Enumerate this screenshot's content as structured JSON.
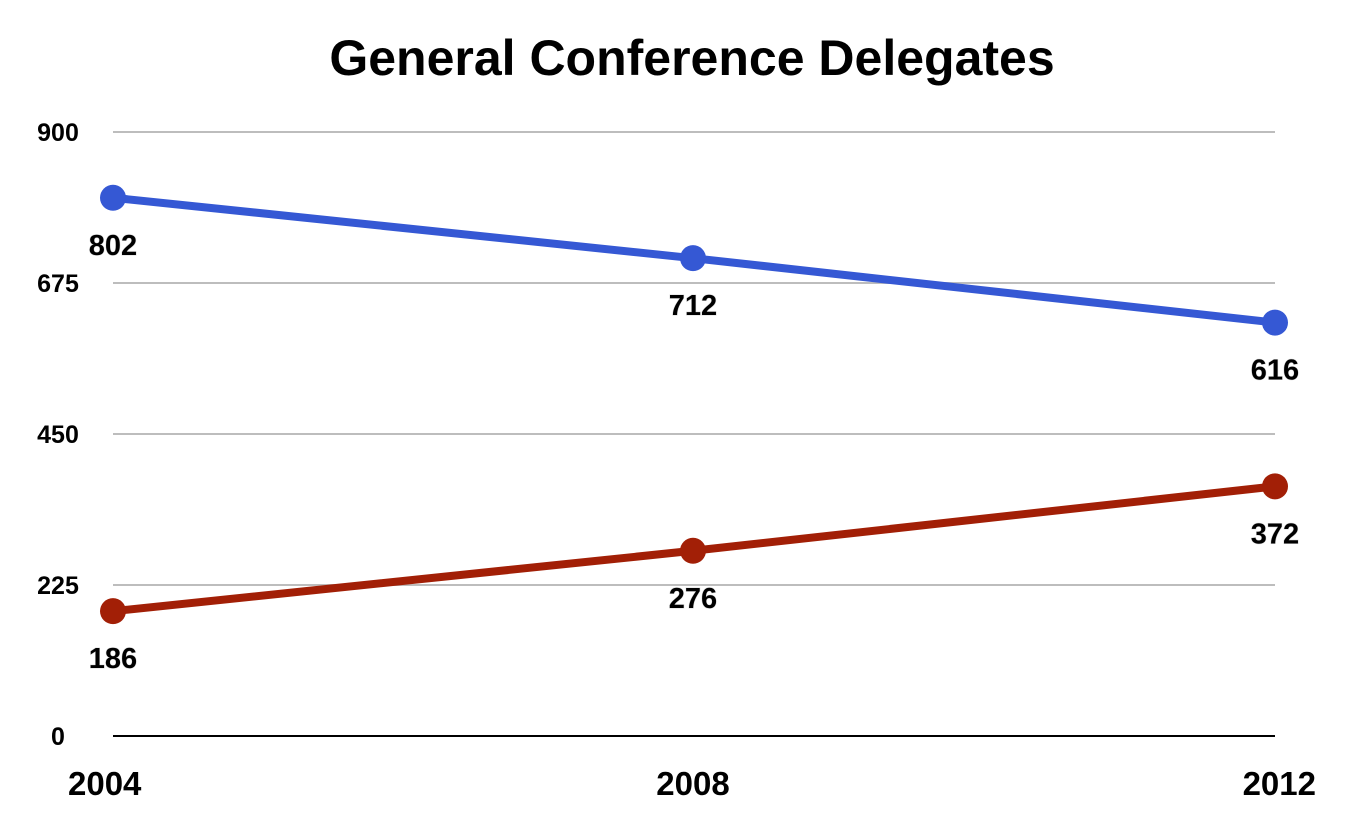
{
  "chart_data": {
    "type": "line",
    "title": "General Conference Delegates",
    "xlabel": "",
    "ylabel": "",
    "x": [
      "2004",
      "2008",
      "2012"
    ],
    "ylim": [
      0,
      900
    ],
    "yticks": [
      "0",
      "225",
      "450",
      "675",
      "900"
    ],
    "grid": true,
    "legend": "none",
    "series": [
      {
        "color": "#3558d4",
        "values": [
          802,
          712,
          616
        ]
      },
      {
        "color": "#a21f06",
        "values": [
          186,
          276,
          372
        ]
      }
    ]
  }
}
